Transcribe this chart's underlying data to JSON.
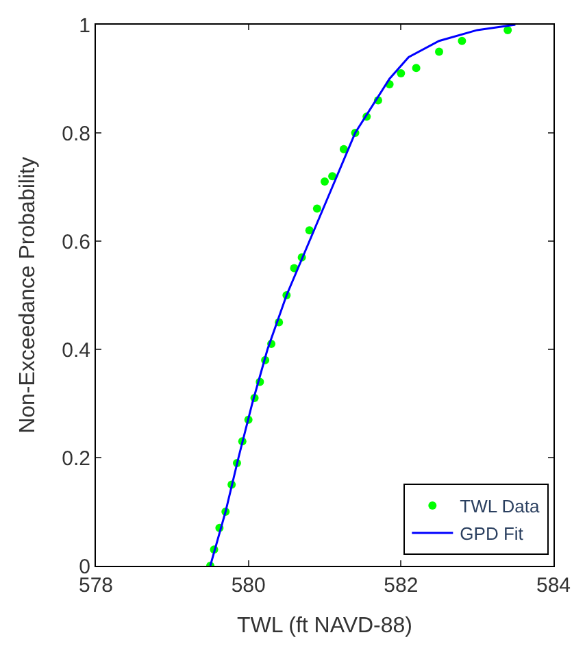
{
  "chart_data": {
    "type": "scatter",
    "xlabel": "TWL (ft NAVD-88)",
    "ylabel": "Non-Exceedance Probability",
    "xlim": [
      578,
      584
    ],
    "xticks": [
      578,
      580,
      582,
      584
    ],
    "ylim": [
      0,
      1
    ],
    "yticks": [
      0,
      0.2,
      0.4,
      0.6,
      0.8,
      1
    ],
    "legend": "bottom right",
    "series": [
      {
        "name": "TWL Data",
        "marker": "circle",
        "color": "#00ff00",
        "x": [
          579.5,
          579.55,
          579.62,
          579.7,
          579.78,
          579.85,
          579.92,
          580.0,
          580.08,
          580.15,
          580.22,
          580.3,
          580.4,
          580.5,
          580.6,
          580.7,
          580.8,
          580.9,
          581.0,
          581.1,
          581.25,
          581.4,
          581.55,
          581.7,
          581.85,
          582.0,
          582.2,
          582.5,
          582.8,
          583.4
        ],
        "values": [
          0.0,
          0.03,
          0.07,
          0.1,
          0.15,
          0.19,
          0.23,
          0.27,
          0.31,
          0.34,
          0.38,
          0.41,
          0.45,
          0.5,
          0.55,
          0.57,
          0.62,
          0.66,
          0.71,
          0.72,
          0.77,
          0.8,
          0.83,
          0.86,
          0.89,
          0.91,
          0.92,
          0.95,
          0.97,
          0.99
        ]
      },
      {
        "name": "GPD Fit",
        "type": "line",
        "marker": "none",
        "line_style": "solid",
        "color": "#0000ff",
        "x": [
          579.5,
          579.7,
          579.87,
          580.05,
          580.25,
          580.5,
          580.8,
          581.1,
          581.4,
          581.85,
          582.1,
          582.5,
          583.0,
          583.5
        ],
        "values": [
          0.0,
          0.1,
          0.2,
          0.3,
          0.4,
          0.5,
          0.6,
          0.7,
          0.8,
          0.9,
          0.94,
          0.97,
          0.99,
          1.0
        ]
      }
    ]
  }
}
